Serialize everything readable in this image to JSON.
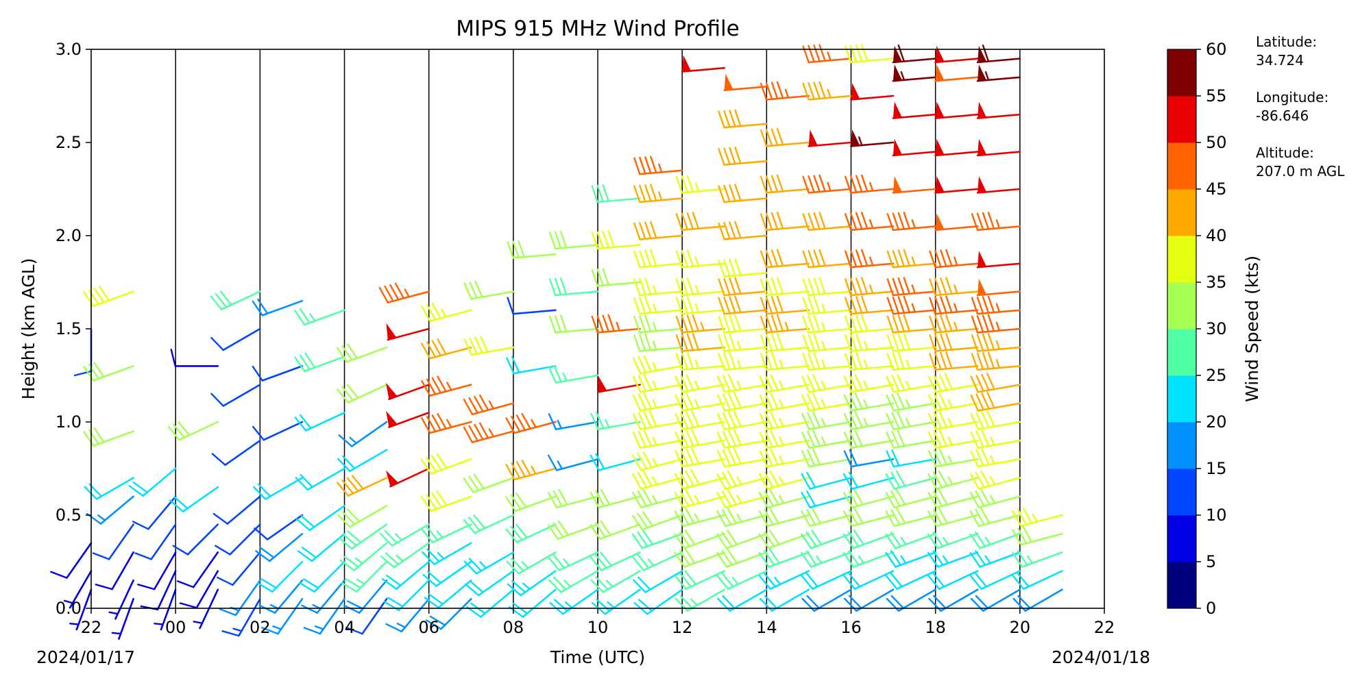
{
  "chart_data": {
    "type": "wind_barb_profile",
    "title": "MIPS 915 MHz Wind Profile",
    "xlabel": "Time (UTC)",
    "ylabel": "Height (km AGL)",
    "x_ticks": [
      "22",
      "00",
      "02",
      "04",
      "06",
      "08",
      "10",
      "12",
      "14",
      "16",
      "18",
      "20",
      "22"
    ],
    "x_range_hours": [
      -2,
      22
    ],
    "date_left": "2024/01/17",
    "date_right": "2024/01/18",
    "ylim": [
      0,
      3.0
    ],
    "y_ticks": [
      "0.0",
      "0.5",
      "1.0",
      "1.5",
      "2.0",
      "2.5",
      "3.0"
    ],
    "column_divider_hours": [
      0,
      2,
      4,
      6,
      8,
      10,
      12,
      14,
      16,
      18,
      20
    ],
    "colorbar": {
      "label": "Wind Speed (kts)",
      "ticks": [
        "0",
        "5",
        "10",
        "15",
        "20",
        "25",
        "30",
        "35",
        "40",
        "45",
        "50",
        "55",
        "60"
      ],
      "range": [
        0,
        60
      ],
      "colors": [
        "#00007f",
        "#0000e3",
        "#0044ff",
        "#0090ff",
        "#00e0ff",
        "#51ffa5",
        "#a4ff52",
        "#e6ff12",
        "#ffaa00",
        "#ff6200",
        "#e60000",
        "#7f0000"
      ]
    },
    "station": {
      "latitude_label": "Latitude:",
      "latitude": "34.724",
      "longitude_label": "Longitude:",
      "longitude": "-86.646",
      "altitude_label": "Altitude:",
      "altitude": "207.0 m AGL"
    },
    "profiles": [
      {
        "time_h": -2.0,
        "heights_km": [
          0.1,
          0.2,
          0.35,
          1.5
        ],
        "speeds_kts": [
          6,
          7,
          8,
          10
        ],
        "dirs_deg": [
          200,
          210,
          215,
          180
        ]
      },
      {
        "time_h": -1.0,
        "heights_km": [
          0.05,
          0.15,
          0.3,
          0.45,
          0.6,
          0.7,
          0.95,
          1.3,
          1.7
        ],
        "speeds_kts": [
          5,
          7,
          9,
          10,
          15,
          22,
          30,
          30,
          38
        ],
        "dirs_deg": [
          200,
          205,
          210,
          215,
          230,
          240,
          250,
          250,
          250
        ]
      },
      {
        "time_h": 0.0,
        "heights_km": [
          0.1,
          0.2,
          0.3,
          0.45,
          0.6,
          0.75
        ],
        "speeds_kts": [
          6,
          8,
          9,
          10,
          12,
          20
        ],
        "dirs_deg": [
          200,
          205,
          210,
          215,
          220,
          230
        ]
      },
      {
        "time_h": 1.0,
        "heights_km": [
          0.1,
          0.2,
          0.3,
          0.45,
          0.65,
          1.0,
          1.3
        ],
        "speeds_kts": [
          7,
          8,
          9,
          10,
          22,
          30,
          8
        ],
        "dirs_deg": [
          205,
          210,
          215,
          225,
          235,
          245,
          270
        ]
      },
      {
        "time_h": 2.0,
        "heights_km": [
          0.05,
          0.15,
          0.3,
          0.45,
          0.6,
          0.9,
          1.2,
          1.5,
          1.7
        ],
        "speeds_kts": [
          14,
          16,
          12,
          10,
          12,
          12,
          10,
          12,
          28
        ],
        "dirs_deg": [
          210,
          215,
          220,
          225,
          230,
          235,
          240,
          240,
          245
        ]
      },
      {
        "time_h": 3.0,
        "heights_km": [
          0.05,
          0.15,
          0.25,
          0.4,
          0.5,
          0.7,
          1.0,
          1.3,
          1.65
        ],
        "speeds_kts": [
          16,
          16,
          20,
          18,
          12,
          22,
          10,
          12,
          18
        ],
        "dirs_deg": [
          215,
          220,
          225,
          230,
          235,
          240,
          245,
          250,
          250
        ]
      },
      {
        "time_h": 4.0,
        "heights_km": [
          0.05,
          0.15,
          0.25,
          0.4,
          0.55,
          0.75,
          1.05,
          1.35,
          1.6
        ],
        "speeds_kts": [
          15,
          17,
          20,
          22,
          20,
          20,
          22,
          28,
          25
        ],
        "dirs_deg": [
          215,
          220,
          225,
          230,
          235,
          240,
          245,
          250,
          250
        ]
      },
      {
        "time_h": 5.0,
        "heights_km": [
          0.05,
          0.15,
          0.25,
          0.35,
          0.45,
          0.55,
          0.7,
          0.85,
          1.0,
          1.2,
          1.4
        ],
        "speeds_kts": [
          12,
          18,
          25,
          27,
          28,
          30,
          40,
          22,
          16,
          30,
          30
        ],
        "dirs_deg": [
          215,
          220,
          225,
          230,
          235,
          240,
          245,
          240,
          235,
          245,
          250
        ]
      },
      {
        "time_h": 6.0,
        "heights_km": [
          0.05,
          0.15,
          0.25,
          0.35,
          0.45,
          0.75,
          1.05,
          1.2,
          1.5,
          1.7
        ],
        "speeds_kts": [
          17,
          20,
          22,
          25,
          27,
          50,
          50,
          50,
          50,
          45
        ],
        "dirs_deg": [
          220,
          225,
          230,
          235,
          240,
          245,
          250,
          250,
          255,
          255
        ]
      },
      {
        "time_h": 7.0,
        "heights_km": [
          0.05,
          0.15,
          0.25,
          0.35,
          0.45,
          0.6,
          0.8,
          1.0,
          1.2,
          1.4,
          1.6
        ],
        "speeds_kts": [
          18,
          20,
          22,
          24,
          26,
          38,
          38,
          45,
          45,
          40,
          35
        ],
        "dirs_deg": [
          225,
          230,
          235,
          240,
          245,
          250,
          250,
          255,
          255,
          255,
          255
        ]
      },
      {
        "time_h": 8.0,
        "heights_km": [
          0.1,
          0.2,
          0.3,
          0.5,
          0.7,
          0.95,
          1.1,
          1.4,
          1.7
        ],
        "speeds_kts": [
          20,
          22,
          24,
          28,
          30,
          45,
          45,
          38,
          30
        ],
        "dirs_deg": [
          230,
          235,
          240,
          245,
          250,
          255,
          255,
          260,
          260
        ]
      },
      {
        "time_h": 9.0,
        "heights_km": [
          0.1,
          0.2,
          0.3,
          0.45,
          0.6,
          0.75,
          1.0,
          1.3,
          1.6,
          1.9
        ],
        "speeds_kts": [
          22,
          24,
          25,
          28,
          30,
          43,
          45,
          20,
          12,
          32
        ],
        "dirs_deg": [
          230,
          235,
          240,
          245,
          250,
          255,
          255,
          260,
          265,
          265
        ]
      },
      {
        "time_h": 10.0,
        "heights_km": [
          0.1,
          0.2,
          0.3,
          0.45,
          0.6,
          0.8,
          1.0,
          1.25,
          1.5,
          1.7,
          1.95
        ],
        "speeds_kts": [
          23,
          25,
          27,
          30,
          32,
          15,
          15,
          25,
          30,
          28,
          30
        ],
        "dirs_deg": [
          235,
          240,
          245,
          250,
          255,
          255,
          260,
          260,
          265,
          265,
          265
        ]
      },
      {
        "time_h": 11.0,
        "heights_km": [
          0.1,
          0.2,
          0.3,
          0.45,
          0.6,
          0.8,
          1.0,
          1.2,
          1.5,
          1.75,
          1.95,
          2.2
        ],
        "speeds_kts": [
          24,
          26,
          28,
          30,
          32,
          20,
          25,
          50,
          45,
          30,
          38,
          28
        ],
        "dirs_deg": [
          235,
          240,
          245,
          250,
          255,
          255,
          260,
          260,
          265,
          265,
          265,
          265
        ]
      },
      {
        "time_h": 12.0,
        "heights_km": [
          0.1,
          0.2,
          0.3,
          0.4,
          0.5,
          0.6,
          0.7,
          0.8,
          0.9,
          1.0,
          1.1,
          1.2,
          1.3,
          1.4,
          1.5,
          1.6,
          1.7,
          1.85,
          2.0,
          2.2,
          2.35
        ],
        "speeds_kts": [
          20,
          22,
          25,
          28,
          30,
          33,
          35,
          36,
          37,
          38,
          36,
          35,
          35,
          33,
          34,
          35,
          36,
          38,
          40,
          43,
          45
        ],
        "dirs_deg": [
          235,
          240,
          245,
          250,
          250,
          255,
          255,
          255,
          260,
          260,
          260,
          260,
          260,
          265,
          265,
          265,
          265,
          265,
          265,
          265,
          265
        ]
      },
      {
        "time_h": 13.0,
        "heights_km": [
          0.1,
          0.2,
          0.3,
          0.4,
          0.5,
          0.6,
          0.7,
          0.8,
          0.9,
          1.0,
          1.1,
          1.2,
          1.3,
          1.4,
          1.5,
          1.6,
          1.7,
          1.85,
          2.05,
          2.25,
          2.9
        ],
        "speeds_kts": [
          25,
          28,
          30,
          32,
          34,
          36,
          38,
          38,
          38,
          38,
          37,
          36,
          35,
          42,
          44,
          36,
          35,
          36,
          42,
          35,
          52
        ],
        "dirs_deg": [
          240,
          245,
          250,
          250,
          255,
          255,
          255,
          260,
          260,
          260,
          260,
          260,
          265,
          265,
          265,
          265,
          265,
          265,
          265,
          265,
          265
        ]
      },
      {
        "time_h": 14.0,
        "heights_km": [
          0.1,
          0.2,
          0.3,
          0.4,
          0.5,
          0.6,
          0.7,
          0.8,
          0.9,
          1.0,
          1.1,
          1.2,
          1.3,
          1.4,
          1.5,
          1.6,
          1.7,
          1.8,
          2.0,
          2.2,
          2.4,
          2.6,
          2.8
        ],
        "speeds_kts": [
          22,
          26,
          30,
          32,
          34,
          36,
          37,
          38,
          38,
          38,
          38,
          37,
          37,
          36,
          38,
          40,
          40,
          38,
          40,
          42,
          40,
          42,
          48
        ],
        "dirs_deg": [
          240,
          245,
          250,
          250,
          255,
          255,
          255,
          260,
          260,
          260,
          260,
          260,
          265,
          265,
          265,
          265,
          265,
          265,
          265,
          265,
          265,
          265,
          265
        ]
      },
      {
        "time_h": 15.0,
        "heights_km": [
          0.1,
          0.2,
          0.3,
          0.4,
          0.5,
          0.6,
          0.7,
          0.8,
          0.9,
          1.0,
          1.1,
          1.2,
          1.3,
          1.4,
          1.5,
          1.6,
          1.7,
          1.85,
          2.05,
          2.25,
          2.5,
          2.75
        ],
        "speeds_kts": [
          20,
          24,
          28,
          30,
          32,
          34,
          35,
          35,
          35,
          35,
          36,
          36,
          37,
          38,
          44,
          42,
          38,
          40,
          40,
          42,
          40,
          45
        ],
        "dirs_deg": [
          240,
          245,
          250,
          250,
          255,
          255,
          255,
          260,
          260,
          260,
          260,
          260,
          265,
          265,
          265,
          265,
          265,
          265,
          265,
          265,
          265,
          265
        ]
      },
      {
        "time_h": 16.0,
        "heights_km": [
          0.1,
          0.2,
          0.3,
          0.4,
          0.5,
          0.6,
          0.7,
          0.8,
          0.9,
          1.0,
          1.1,
          1.2,
          1.3,
          1.4,
          1.5,
          1.6,
          1.7,
          1.85,
          2.05,
          2.25,
          2.5,
          2.75,
          2.95
        ],
        "speeds_kts": [
          18,
          22,
          25,
          28,
          30,
          20,
          22,
          32,
          33,
          34,
          35,
          36,
          37,
          36,
          35,
          36,
          38,
          40,
          42,
          45,
          50,
          43,
          47
        ],
        "dirs_deg": [
          240,
          245,
          250,
          250,
          255,
          255,
          255,
          260,
          260,
          260,
          260,
          260,
          265,
          265,
          265,
          265,
          265,
          265,
          265,
          265,
          265,
          265,
          265
        ]
      },
      {
        "time_h": 17.0,
        "heights_km": [
          0.1,
          0.2,
          0.3,
          0.4,
          0.5,
          0.6,
          0.7,
          0.8,
          0.9,
          1.0,
          1.1,
          1.2,
          1.3,
          1.4,
          1.5,
          1.6,
          1.7,
          1.85,
          2.05,
          2.25,
          2.5,
          2.75,
          2.95
        ],
        "speeds_kts": [
          18,
          22,
          25,
          28,
          30,
          32,
          22,
          18,
          30,
          33,
          34,
          35,
          36,
          37,
          38,
          40,
          43,
          45,
          45,
          46,
          57,
          52,
          38
        ],
        "dirs_deg": [
          240,
          245,
          250,
          250,
          255,
          255,
          255,
          260,
          260,
          260,
          260,
          260,
          265,
          265,
          265,
          265,
          265,
          265,
          265,
          265,
          265,
          265,
          265
        ]
      },
      {
        "time_h": 18.0,
        "heights_km": [
          0.1,
          0.2,
          0.3,
          0.4,
          0.5,
          0.6,
          0.7,
          0.8,
          0.9,
          1.0,
          1.1,
          1.2,
          1.3,
          1.4,
          1.5,
          1.6,
          1.7,
          1.85,
          2.05,
          2.25,
          2.45,
          2.65,
          2.85,
          2.95
        ],
        "speeds_kts": [
          18,
          20,
          24,
          27,
          30,
          30,
          28,
          20,
          30,
          33,
          34,
          35,
          36,
          38,
          42,
          45,
          47,
          43,
          46,
          48,
          52,
          52,
          57,
          58
        ],
        "dirs_deg": [
          240,
          245,
          250,
          250,
          255,
          255,
          255,
          260,
          260,
          260,
          260,
          260,
          265,
          265,
          265,
          265,
          265,
          265,
          265,
          265,
          265,
          265,
          265,
          265
        ]
      },
      {
        "time_h": 19.0,
        "heights_km": [
          0.1,
          0.2,
          0.3,
          0.4,
          0.5,
          0.6,
          0.7,
          0.8,
          0.9,
          1.0,
          1.1,
          1.2,
          1.3,
          1.4,
          1.5,
          1.6,
          1.7,
          1.85,
          2.05,
          2.25,
          2.45,
          2.65,
          2.85,
          2.95
        ],
        "speeds_kts": [
          18,
          20,
          24,
          27,
          30,
          32,
          33,
          34,
          35,
          36,
          37,
          38,
          40,
          42,
          44,
          45,
          43,
          45,
          48,
          50,
          52,
          52,
          48,
          52
        ],
        "dirs_deg": [
          240,
          245,
          250,
          250,
          255,
          255,
          255,
          260,
          260,
          260,
          260,
          260,
          265,
          265,
          265,
          265,
          265,
          265,
          265,
          265,
          265,
          265,
          265,
          265
        ]
      },
      {
        "time_h": 20.0,
        "heights_km": [
          0.1,
          0.2,
          0.3,
          0.4,
          0.5,
          0.6,
          0.7,
          0.8,
          0.9,
          1.0,
          1.1,
          1.2,
          1.3,
          1.4,
          1.5,
          1.6,
          1.7,
          1.85,
          2.05,
          2.25,
          2.45,
          2.65,
          2.85,
          2.95
        ],
        "speeds_kts": [
          18,
          20,
          24,
          27,
          30,
          33,
          35,
          36,
          37,
          38,
          40,
          42,
          43,
          44,
          45,
          46,
          48,
          52,
          46,
          52,
          52,
          52,
          57,
          58
        ],
        "dirs_deg": [
          240,
          245,
          250,
          250,
          255,
          255,
          255,
          260,
          260,
          260,
          260,
          260,
          265,
          265,
          265,
          265,
          265,
          265,
          265,
          265,
          265,
          265,
          265,
          265
        ]
      },
      {
        "time_h": 21.0,
        "heights_km": [
          0.1,
          0.2,
          0.3,
          0.4,
          0.5
        ],
        "speeds_kts": [
          18,
          22,
          25,
          30,
          36
        ],
        "dirs_deg": [
          240,
          245,
          250,
          255,
          255
        ]
      }
    ]
  }
}
